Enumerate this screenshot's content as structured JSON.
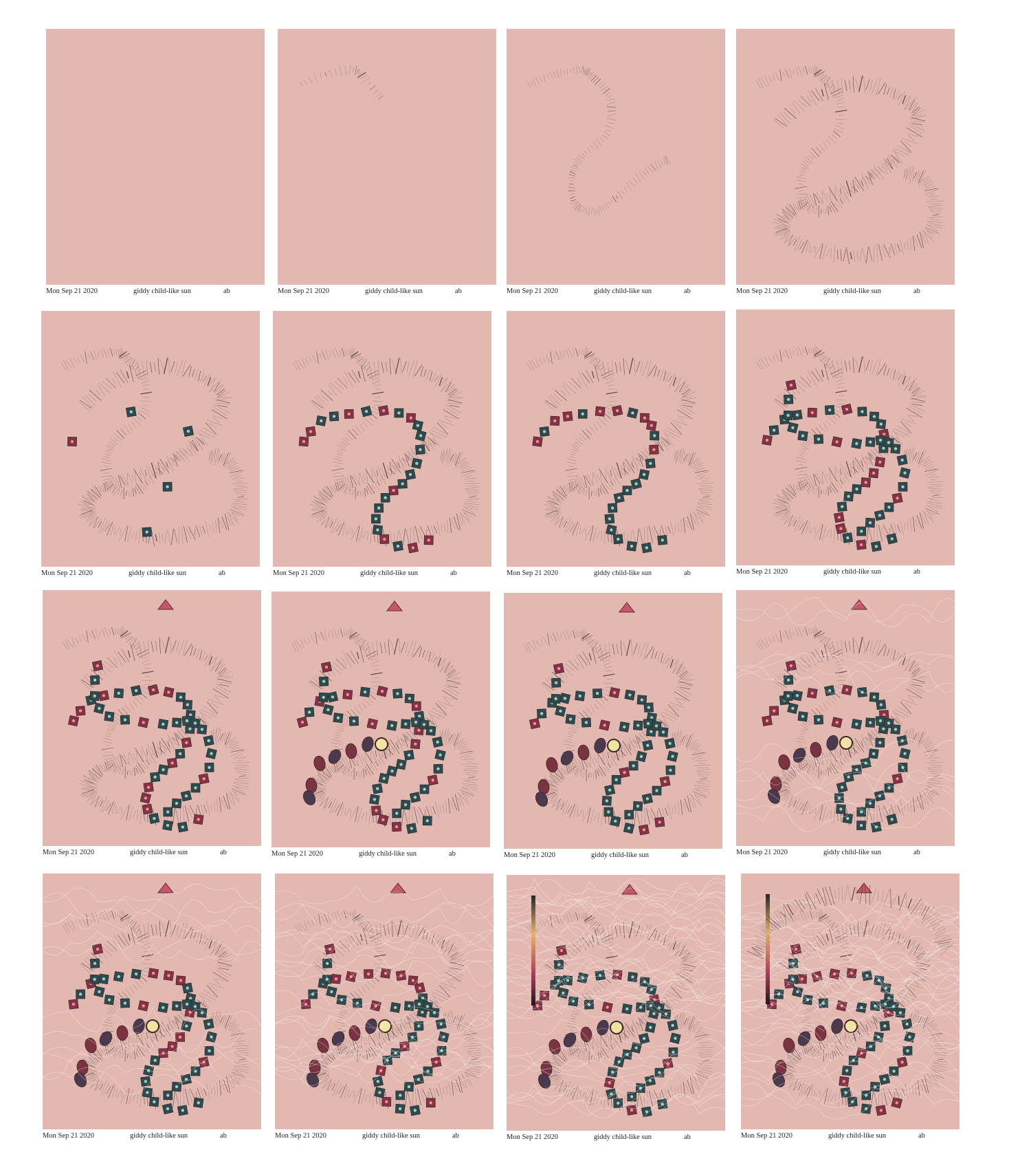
{
  "frames": [
    {
      "date": "Mon Sep 21 2020",
      "title": "giddy child-like sun",
      "author": "ab",
      "stage": 0
    },
    {
      "date": "Mon Sep 21 2020",
      "title": "giddy child-like sun",
      "author": "ab",
      "stage": 1
    },
    {
      "date": "Mon Sep 21 2020",
      "title": "giddy child-like sun",
      "author": "ab",
      "stage": 2
    },
    {
      "date": "Mon Sep 21 2020",
      "title": "giddy child-like sun",
      "author": "ab",
      "stage": 3
    },
    {
      "date": "Mon Sep 21 2020",
      "title": "giddy child-like sun",
      "author": "ab",
      "stage": 4
    },
    {
      "date": "Mon Sep 21 2020",
      "title": "giddy child-like sun",
      "author": "ab",
      "stage": 5
    },
    {
      "date": "Mon Sep 21 2020",
      "title": "giddy child-like sun",
      "author": "ab",
      "stage": 6
    },
    {
      "date": "Mon Sep 21 2020",
      "title": "giddy child-like sun",
      "author": "ab",
      "stage": 7
    },
    {
      "date": "Mon Sep 21 2020",
      "title": "giddy child-like sun",
      "author": "ab",
      "stage": 8
    },
    {
      "date": "Mon Sep 21 2020",
      "title": "giddy child-like sun",
      "author": "ab",
      "stage": 9
    },
    {
      "date": "Mon Sep 21 2020",
      "title": "giddy child-like sun",
      "author": "ab",
      "stage": 10
    },
    {
      "date": "Mon Sep 21 2020",
      "title": "giddy child-like sun",
      "author": "ab",
      "stage": 11
    },
    {
      "date": "Mon Sep 21 2020",
      "title": "giddy child-like sun",
      "author": "ab",
      "stage": 12
    },
    {
      "date": "Mon Sep 21 2020",
      "title": "giddy child-like sun",
      "author": "ab",
      "stage": 13
    },
    {
      "date": "Mon Sep 21 2020",
      "title": "giddy child-like sun",
      "author": "ab",
      "stage": 14
    },
    {
      "date": "Mon Sep 21 2020",
      "title": "giddy child-like sun",
      "author": "ab",
      "stage": 15
    }
  ],
  "colors": {
    "canvas_bg": "#e2b8b1",
    "stroke_dark": "#3a2a2a",
    "stroke_light": "#a08582",
    "tile_teal": "#2f4a4c",
    "tile_red": "#8a2f44",
    "triangle": "#c8566a",
    "wave": "#ffffff"
  }
}
